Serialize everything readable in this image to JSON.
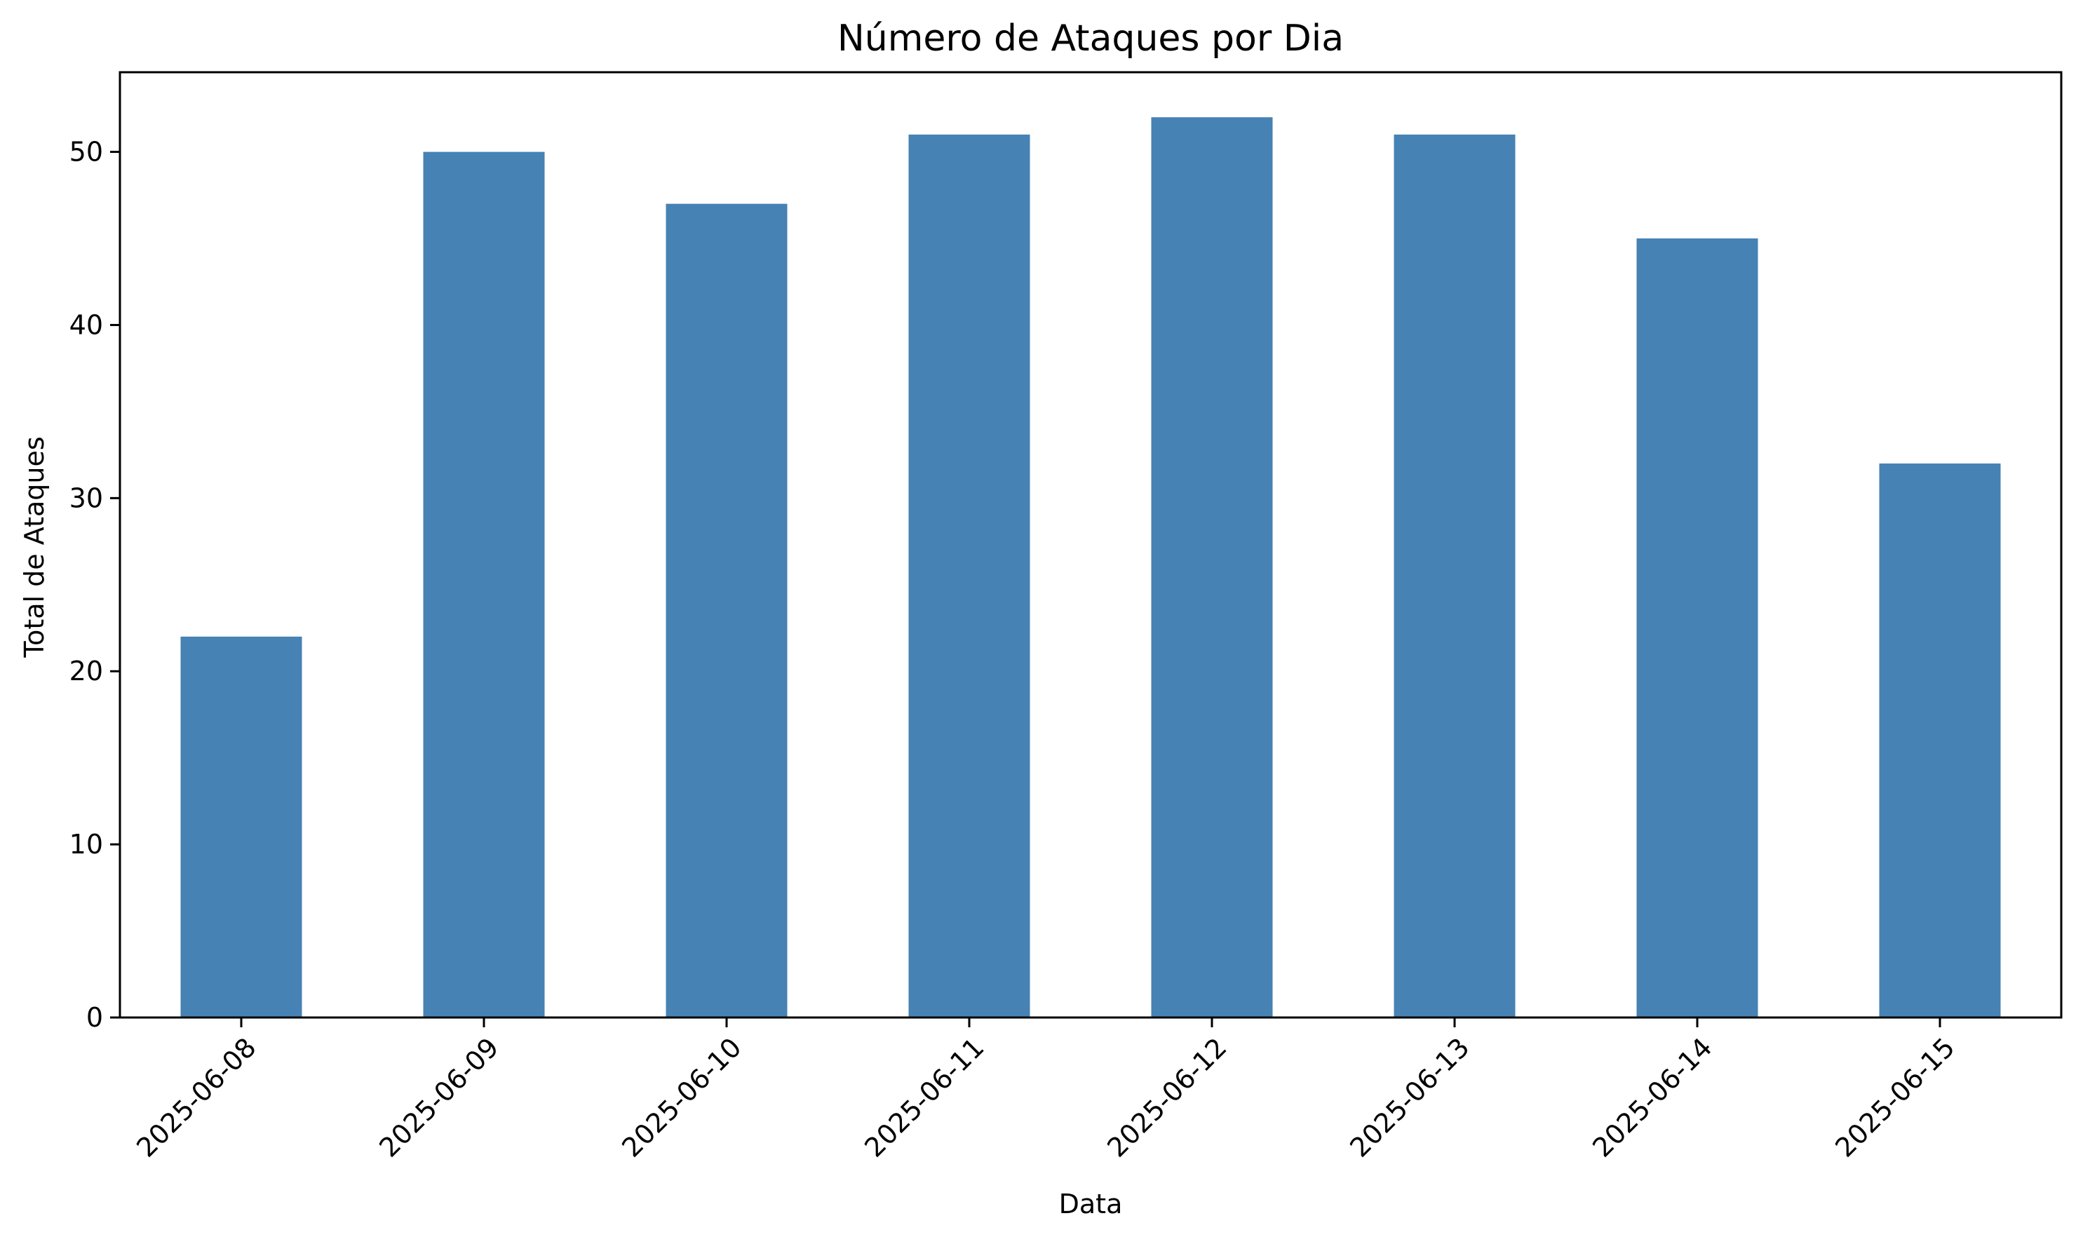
{
  "chart_data": {
    "type": "bar",
    "title": "Número de Ataques por Dia",
    "xlabel": "Data",
    "ylabel": "Total de Ataques",
    "categories": [
      "2025-06-08",
      "2025-06-09",
      "2025-06-10",
      "2025-06-11",
      "2025-06-12",
      "2025-06-13",
      "2025-06-14",
      "2025-06-15"
    ],
    "values": [
      22,
      50,
      47,
      51,
      52,
      51,
      45,
      32
    ],
    "ylim": [
      0,
      54.6
    ],
    "yticks": [
      0,
      10,
      20,
      30,
      40,
      50
    ],
    "bar_color": "#4682b4",
    "grid": false,
    "legend": "none"
  }
}
